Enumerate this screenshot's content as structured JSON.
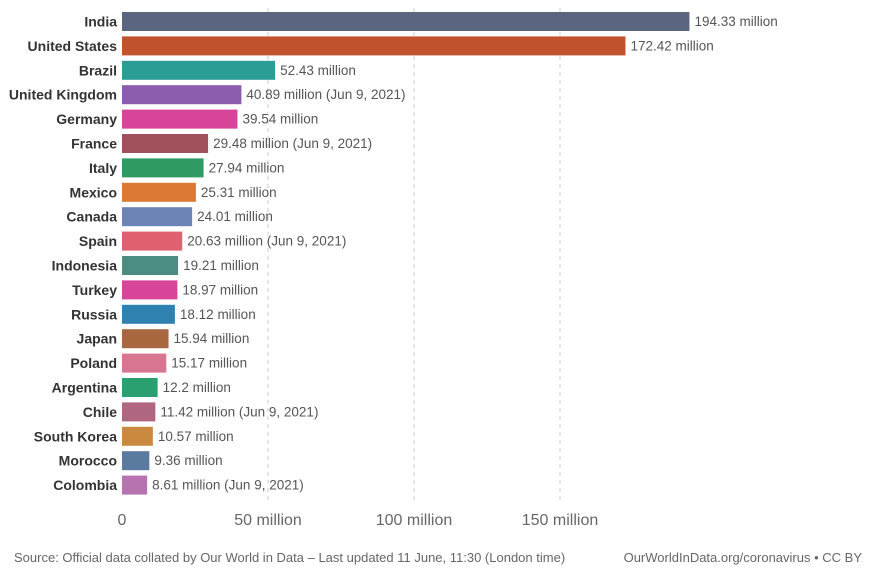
{
  "chart_data": {
    "type": "bar",
    "orientation": "horizontal",
    "categories": [
      "India",
      "United States",
      "Brazil",
      "United Kingdom",
      "Germany",
      "France",
      "Italy",
      "Mexico",
      "Canada",
      "Spain",
      "Indonesia",
      "Turkey",
      "Russia",
      "Japan",
      "Poland",
      "Argentina",
      "Chile",
      "South Korea",
      "Morocco",
      "Colombia"
    ],
    "values": [
      194.33,
      172.42,
      52.43,
      40.89,
      39.54,
      29.48,
      27.94,
      25.31,
      24.01,
      20.63,
      19.21,
      18.97,
      18.12,
      15.94,
      15.17,
      12.2,
      11.42,
      10.57,
      9.36,
      8.61
    ],
    "value_labels": [
      "194.33 million",
      "172.42 million",
      "52.43 million",
      "40.89 million (Jun 9, 2021)",
      "39.54 million",
      "29.48 million (Jun 9, 2021)",
      "27.94 million",
      "25.31 million",
      "24.01 million",
      "20.63 million (Jun 9, 2021)",
      "19.21 million",
      "18.97 million",
      "18.12 million",
      "15.94 million",
      "15.17 million",
      "12.2 million",
      "11.42 million (Jun 9, 2021)",
      "10.57 million",
      "9.36 million",
      "8.61 million (Jun 9, 2021)"
    ],
    "colors": [
      "#5b6580",
      "#c0532d",
      "#2a9e94",
      "#8a5cad",
      "#d8449a",
      "#a0505a",
      "#2f9b63",
      "#dc7a35",
      "#6b83b5",
      "#e0606f",
      "#4d8c80",
      "#d8449a",
      "#2f82b0",
      "#a8673f",
      "#d87590",
      "#2aa070",
      "#b06580",
      "#c98a40",
      "#5a7aa0",
      "#b773b0"
    ],
    "x_ticks": [
      {
        "value": 0,
        "label": "0"
      },
      {
        "value": 50,
        "label": "50 million"
      },
      {
        "value": 100,
        "label": "100 million"
      },
      {
        "value": 150,
        "label": "150 million"
      }
    ],
    "xlim": [
      0,
      200
    ],
    "grid": true,
    "title": "",
    "xlabel": "",
    "ylabel": ""
  },
  "footer": {
    "source": "Source: Official data collated by Our World in Data – Last updated 11 June, 11:30 (London time)",
    "site": "OurWorldInData.org/coronavirus • CC BY"
  }
}
